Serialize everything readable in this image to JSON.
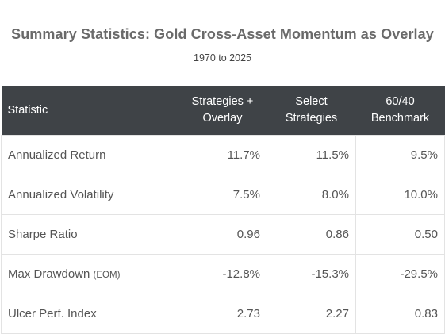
{
  "title": "Summary Statistics: Gold Cross-Asset Momentum as Overlay",
  "subtitle": "1970 to 2025",
  "table": {
    "headers": [
      [
        "Statistic"
      ],
      [
        "Strategies +",
        "Overlay"
      ],
      [
        "Select",
        "Strategies"
      ],
      [
        "60/40",
        "Benchmark"
      ]
    ],
    "rows": [
      {
        "label": "Annualized Return",
        "note": "",
        "values": [
          "11.7%",
          "11.5%",
          "9.5%"
        ]
      },
      {
        "label": "Annualized Volatility",
        "note": "",
        "values": [
          "7.5%",
          "8.0%",
          "10.0%"
        ]
      },
      {
        "label": "Sharpe Ratio",
        "note": "",
        "values": [
          "0.96",
          "0.86",
          "0.50"
        ]
      },
      {
        "label": "Max Drawdown",
        "note": "(EOM)",
        "values": [
          "-12.8%",
          "-15.3%",
          "-29.5%"
        ]
      },
      {
        "label": "Ulcer Perf. Index",
        "note": "",
        "values": [
          "2.73",
          "2.27",
          "0.83"
        ]
      }
    ]
  }
}
